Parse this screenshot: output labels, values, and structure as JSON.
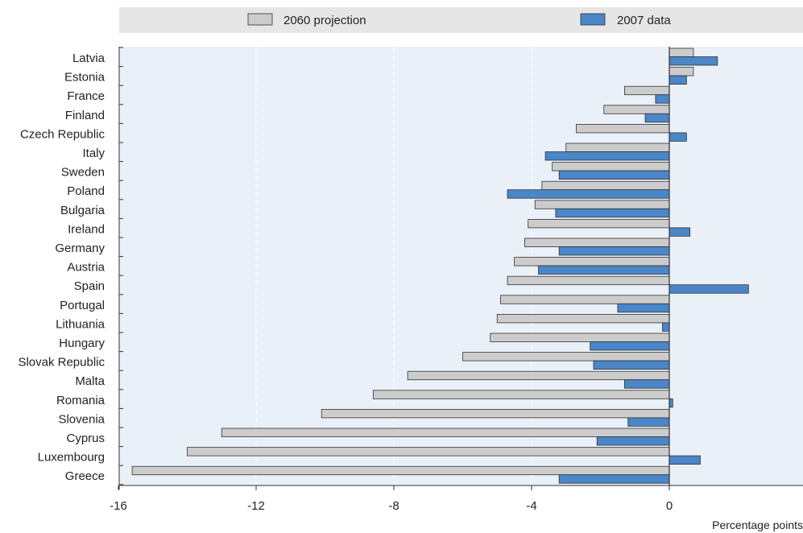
{
  "chart_data": {
    "type": "bar",
    "orientation": "horizontal",
    "categories": [
      "Latvia",
      "Estonia",
      "France",
      "Finland",
      "Czech Republic",
      "Italy",
      "Sweden",
      "Poland",
      "Bulgaria",
      "Ireland",
      "Germany",
      "Austria",
      "Spain",
      "Portugal",
      "Lithuania",
      "Hungary",
      "Slovak Republic",
      "Malta",
      "Romania",
      "Slovenia",
      "Cyprus",
      "Luxembourg",
      "Greece"
    ],
    "series": [
      {
        "name": "2060 projection",
        "color": "#cccccc",
        "values": [
          0.7,
          0.7,
          -1.3,
          -1.9,
          -2.7,
          -3.0,
          -3.4,
          -3.7,
          -3.9,
          -4.1,
          -4.2,
          -4.5,
          -4.7,
          -4.9,
          -5.0,
          -5.2,
          -6.0,
          -7.6,
          -8.6,
          -10.1,
          -13.0,
          -14.0,
          -15.6
        ]
      },
      {
        "name": "2007 data",
        "color": "#4a86c8",
        "values": [
          1.4,
          0.5,
          -0.4,
          -0.7,
          0.5,
          -3.6,
          -3.2,
          -4.7,
          -3.3,
          0.6,
          -3.2,
          -3.8,
          2.3,
          -1.5,
          -0.2,
          -2.3,
          -2.2,
          -1.3,
          0.1,
          -1.2,
          -2.1,
          0.9,
          -3.2
        ]
      }
    ],
    "xlim": [
      -16,
      4
    ],
    "xticks": [
      "-16",
      "-12",
      "-8",
      "-4",
      "0",
      "4"
    ],
    "xlabel": "Percentage points",
    "ylabel": "",
    "title": "",
    "grid": "vertical dashed",
    "legend": "top"
  }
}
